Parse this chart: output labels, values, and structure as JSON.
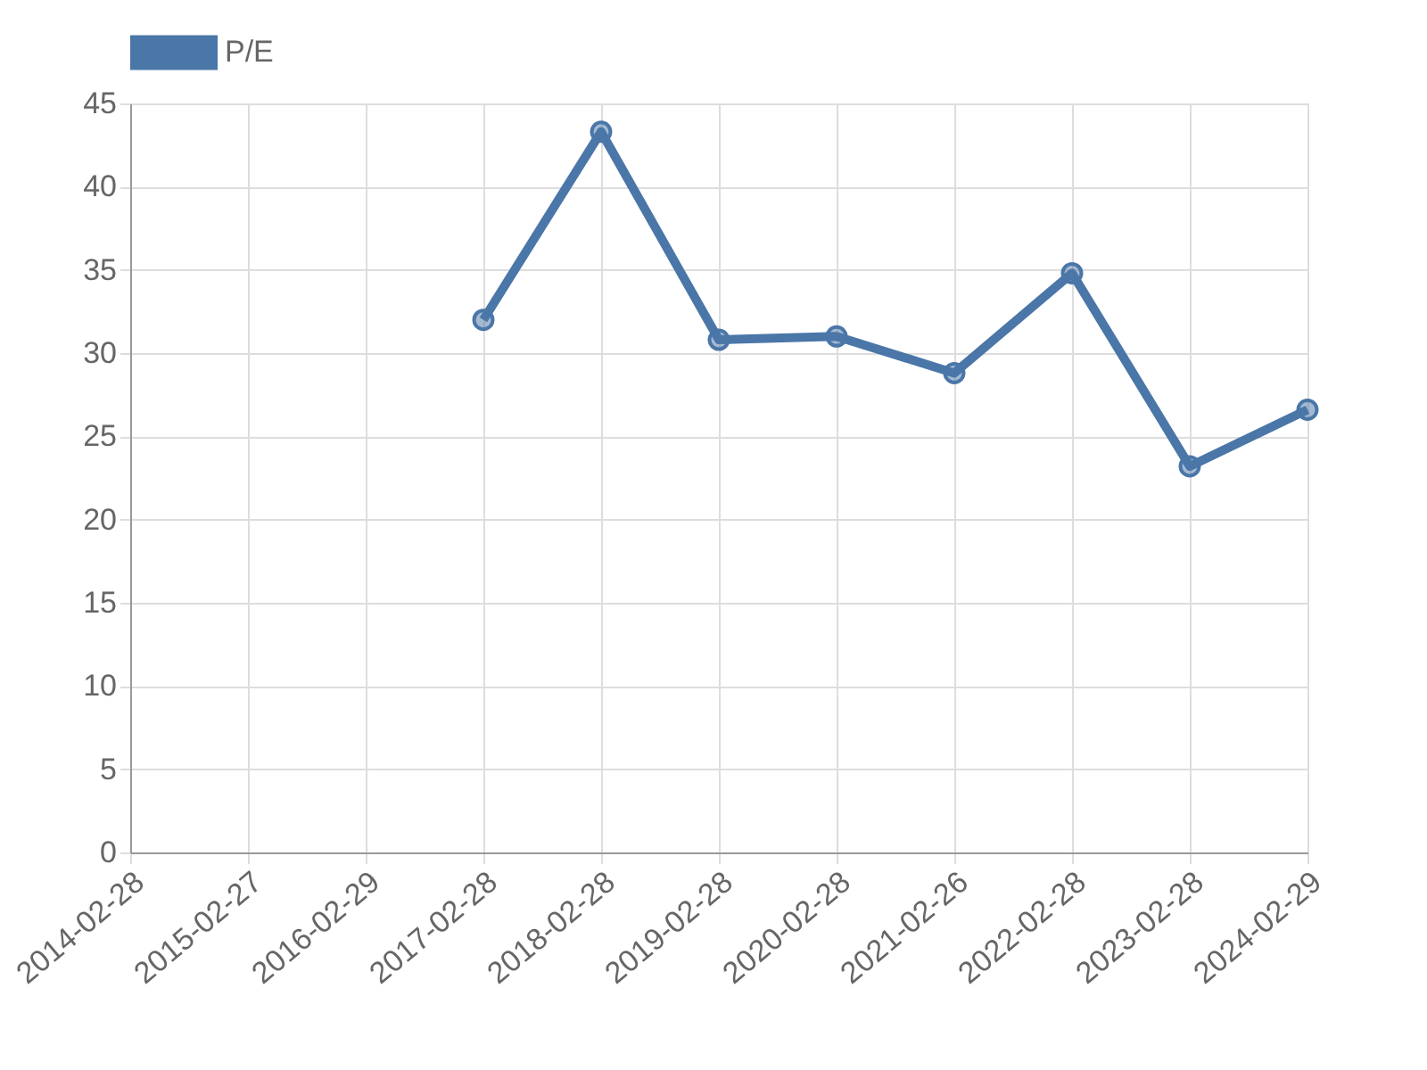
{
  "chart_data": {
    "type": "line",
    "categories": [
      "2014-02-28",
      "2015-02-27",
      "2016-02-29",
      "2017-02-28",
      "2018-02-28",
      "2019-02-28",
      "2020-02-28",
      "2021-02-26",
      "2022-02-28",
      "2023-02-28",
      "2024-02-29"
    ],
    "series": [
      {
        "name": "P/E",
        "color": "#4a76a8",
        "values": [
          null,
          null,
          null,
          32.0,
          43.3,
          30.8,
          31.0,
          28.8,
          34.8,
          23.2,
          26.6
        ]
      }
    ],
    "ylim": [
      0,
      45
    ],
    "yticks": [
      0,
      5,
      10,
      15,
      20,
      25,
      30,
      35,
      40,
      45
    ],
    "grid": true,
    "legend": "top",
    "marker": "circle",
    "line_style": "solid"
  }
}
